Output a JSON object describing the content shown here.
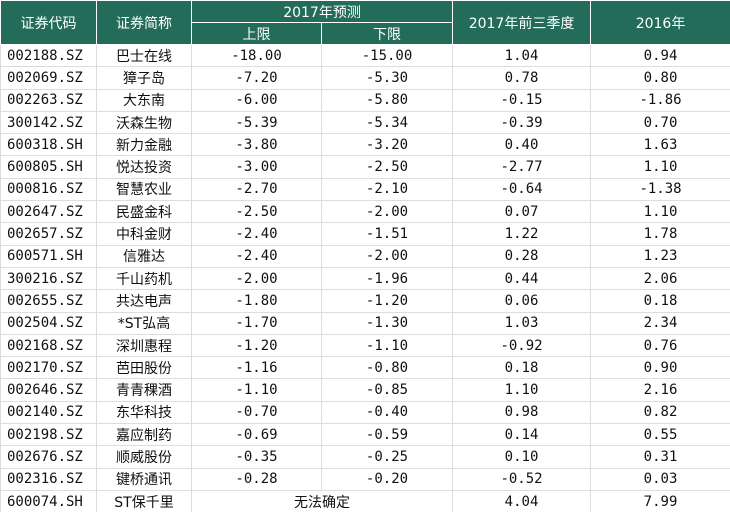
{
  "header": {
    "code": "证券代码",
    "name": "证券简称",
    "forecast": "2017年预测",
    "upper": "上限",
    "lower": "下限",
    "q3": "2017年前三季度",
    "y2016": "2016年"
  },
  "rows": [
    [
      "002188.SZ",
      "巴士在线",
      "-18.00",
      "-15.00",
      "1.04",
      "0.94"
    ],
    [
      "002069.SZ",
      "獐子岛",
      "-7.20",
      "-5.30",
      "0.78",
      "0.80"
    ],
    [
      "002263.SZ",
      "大东南",
      "-6.00",
      "-5.80",
      "-0.15",
      "-1.86"
    ],
    [
      "300142.SZ",
      "沃森生物",
      "-5.39",
      "-5.34",
      "-0.39",
      "0.70"
    ],
    [
      "600318.SH",
      "新力金融",
      "-3.80",
      "-3.20",
      "0.40",
      "1.63"
    ],
    [
      "600805.SH",
      "悦达投资",
      "-3.00",
      "-2.50",
      "-2.77",
      "1.10"
    ],
    [
      "000816.SZ",
      "智慧农业",
      "-2.70",
      "-2.10",
      "-0.64",
      "-1.38"
    ],
    [
      "002647.SZ",
      "民盛金科",
      "-2.50",
      "-2.00",
      "0.07",
      "1.10"
    ],
    [
      "002657.SZ",
      "中科金财",
      "-2.40",
      "-1.51",
      "1.22",
      "1.78"
    ],
    [
      "600571.SH",
      "信雅达",
      "-2.40",
      "-2.00",
      "0.28",
      "1.23"
    ],
    [
      "300216.SZ",
      "千山药机",
      "-2.00",
      "-1.96",
      "0.44",
      "2.06"
    ],
    [
      "002655.SZ",
      "共达电声",
      "-1.80",
      "-1.20",
      "0.06",
      "0.18"
    ],
    [
      "002504.SZ",
      "*ST弘高",
      "-1.70",
      "-1.30",
      "1.03",
      "2.34"
    ],
    [
      "002168.SZ",
      "深圳惠程",
      "-1.20",
      "-1.10",
      "-0.92",
      "0.76"
    ],
    [
      "002170.SZ",
      "芭田股份",
      "-1.16",
      "-0.80",
      "0.18",
      "0.90"
    ],
    [
      "002646.SZ",
      "青青稞酒",
      "-1.10",
      "-0.85",
      "1.10",
      "2.16"
    ],
    [
      "002140.SZ",
      "东华科技",
      "-0.70",
      "-0.40",
      "0.98",
      "0.82"
    ],
    [
      "002198.SZ",
      "嘉应制药",
      "-0.69",
      "-0.59",
      "0.14",
      "0.55"
    ],
    [
      "002676.SZ",
      "顺威股份",
      "-0.35",
      "-0.25",
      "0.10",
      "0.31"
    ],
    [
      "002316.SZ",
      "键桥通讯",
      "-0.28",
      "-0.20",
      "-0.52",
      "0.03"
    ],
    [
      "600074.SH",
      "ST保千里",
      "无法确定",
      "4.04",
      "7.99"
    ]
  ]
}
